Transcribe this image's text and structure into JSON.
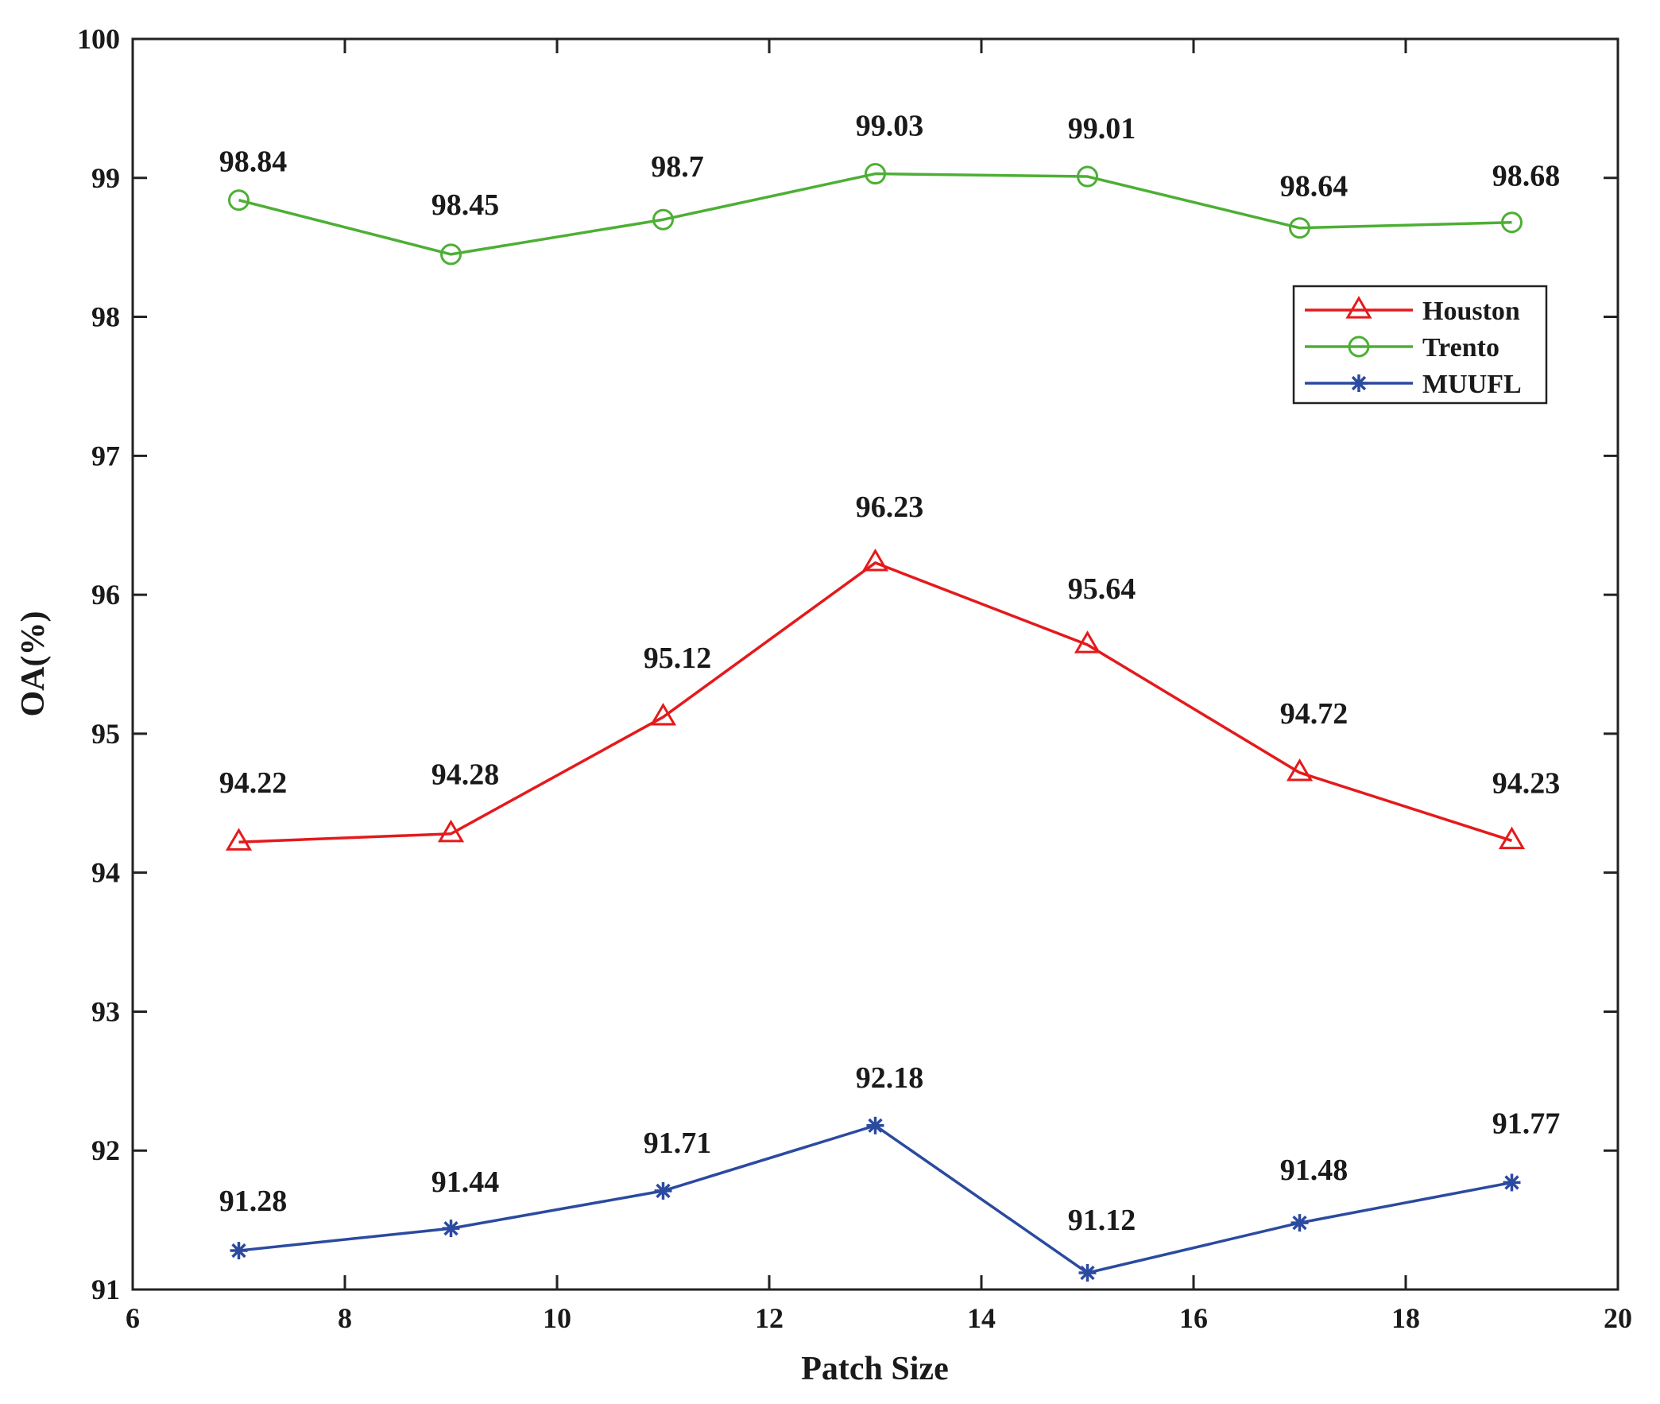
{
  "chart_data": {
    "type": "line",
    "title": "",
    "xlabel": "Patch Size",
    "ylabel": "OA(%)",
    "xlim": [
      6,
      20
    ],
    "ylim": [
      91,
      100
    ],
    "xticks": [
      6,
      8,
      10,
      12,
      14,
      16,
      18,
      20
    ],
    "yticks": [
      91,
      92,
      93,
      94,
      95,
      96,
      97,
      98,
      99,
      100
    ],
    "x": [
      7,
      9,
      11,
      13,
      15,
      17,
      19
    ],
    "grid": false,
    "legend_position": "top-right",
    "series": [
      {
        "name": "Houston",
        "color": "#e41a1c",
        "marker": "triangle",
        "values": [
          94.22,
          94.28,
          95.12,
          96.23,
          95.64,
          94.72,
          94.23
        ],
        "labels": [
          "94.22",
          "94.28",
          "95.12",
          "96.23",
          "95.64",
          "94.72",
          "94.23"
        ]
      },
      {
        "name": "Trento",
        "color": "#4daf35",
        "marker": "circle",
        "values": [
          98.84,
          98.45,
          98.7,
          99.03,
          99.01,
          98.64,
          98.68
        ],
        "labels": [
          "98.84",
          "98.45",
          "98.7",
          "99.03",
          "99.01",
          "98.64",
          "98.68"
        ]
      },
      {
        "name": "MUUFL",
        "color": "#2b4aa0",
        "marker": "asterisk",
        "values": [
          91.28,
          91.44,
          91.71,
          92.18,
          91.12,
          91.48,
          91.77
        ],
        "labels": [
          "91.28",
          "91.44",
          "91.71",
          "92.18",
          "91.12",
          "91.48",
          "91.77"
        ]
      }
    ]
  }
}
